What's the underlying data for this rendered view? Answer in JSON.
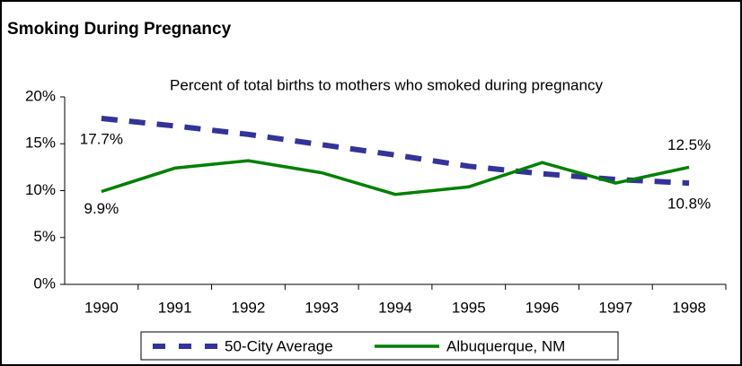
{
  "chart_data": {
    "type": "line",
    "title": "Smoking During Pregnancy",
    "subtitle": "Percent of total births to mothers who smoked during pregnancy",
    "categories": [
      "1990",
      "1991",
      "1992",
      "1993",
      "1994",
      "1995",
      "1996",
      "1997",
      "1998"
    ],
    "series": [
      {
        "name": "50-City Average",
        "color": "#333399",
        "dashed": true,
        "values": [
          17.7,
          16.9,
          16.0,
          14.9,
          13.8,
          12.6,
          11.8,
          11.2,
          10.8
        ],
        "value_labels": [
          "17.7%",
          null,
          null,
          null,
          null,
          null,
          null,
          null,
          "10.8%"
        ]
      },
      {
        "name": "Albuquerque, NM",
        "color": "#008000",
        "dashed": false,
        "values": [
          9.9,
          12.4,
          13.2,
          11.9,
          9.6,
          10.4,
          13.0,
          10.8,
          12.5
        ],
        "value_labels": [
          "9.9%",
          null,
          null,
          null,
          null,
          null,
          null,
          null,
          "12.5%"
        ]
      }
    ],
    "ylim": [
      0,
      20
    ],
    "yticks": [
      {
        "value": 0,
        "label": "0%"
      },
      {
        "value": 5,
        "label": "5%"
      },
      {
        "value": 10,
        "label": "10%"
      },
      {
        "value": 15,
        "label": "15%"
      },
      {
        "value": 20,
        "label": "20%"
      }
    ],
    "grid": false,
    "legend": "bottom"
  }
}
